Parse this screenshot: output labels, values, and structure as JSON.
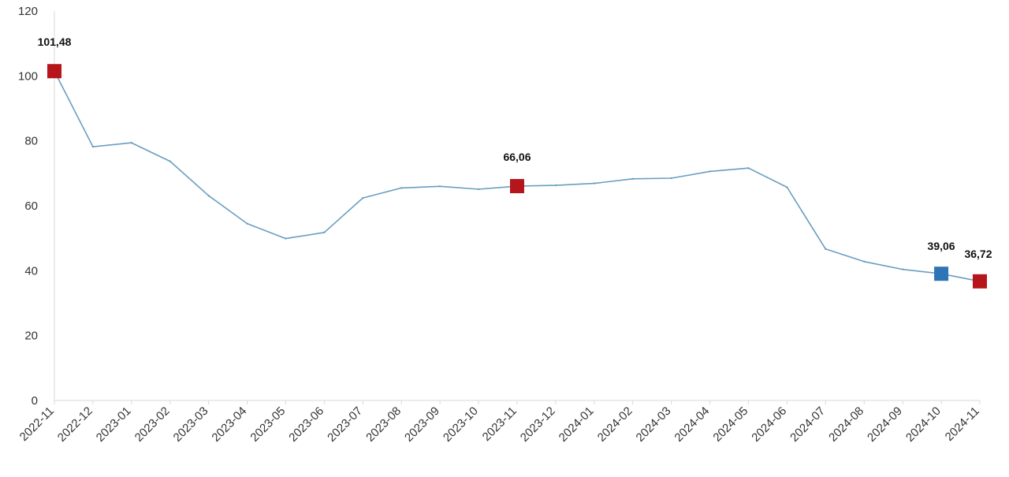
{
  "chart_data": {
    "type": "line",
    "title": "",
    "xlabel": "",
    "ylabel": "",
    "categories": [
      "2022-11",
      "2022-12",
      "2023-01",
      "2023-02",
      "2023-03",
      "2023-04",
      "2023-05",
      "2023-06",
      "2023-07",
      "2023-08",
      "2023-09",
      "2023-10",
      "2023-11",
      "2023-12",
      "2024-01",
      "2024-02",
      "2024-03",
      "2024-04",
      "2024-05",
      "2024-06",
      "2024-07",
      "2024-08",
      "2024-09",
      "2024-10",
      "2024-11"
    ],
    "series": [
      {
        "values": [
          101.48,
          78.2,
          79.4,
          73.7,
          63.1,
          54.5,
          49.9,
          51.8,
          62.4,
          65.5,
          66.0,
          65.1,
          66.06,
          66.3,
          66.9,
          68.3,
          68.5,
          70.6,
          71.6,
          65.7,
          46.7,
          42.8,
          40.4,
          39.06,
          36.72
        ]
      }
    ],
    "ylim": [
      0,
      120
    ],
    "yticks": [
      0,
      20,
      40,
      60,
      80,
      100,
      120
    ],
    "grid": false,
    "legend": "none",
    "highlights": [
      {
        "category": "2022-11",
        "value": 101.48,
        "label": "101,48",
        "color": "#b5151b"
      },
      {
        "category": "2023-11",
        "value": 66.06,
        "label": "66,06",
        "color": "#b5151b"
      },
      {
        "category": "2024-10",
        "value": 39.06,
        "label": "39,06",
        "color": "#2e75b6"
      },
      {
        "category": "2024-11",
        "value": 36.72,
        "label": "36,72",
        "color": "#b5151b"
      }
    ],
    "colors": {
      "line": "#6a9ec0",
      "axis": "#d9d9d9"
    }
  }
}
